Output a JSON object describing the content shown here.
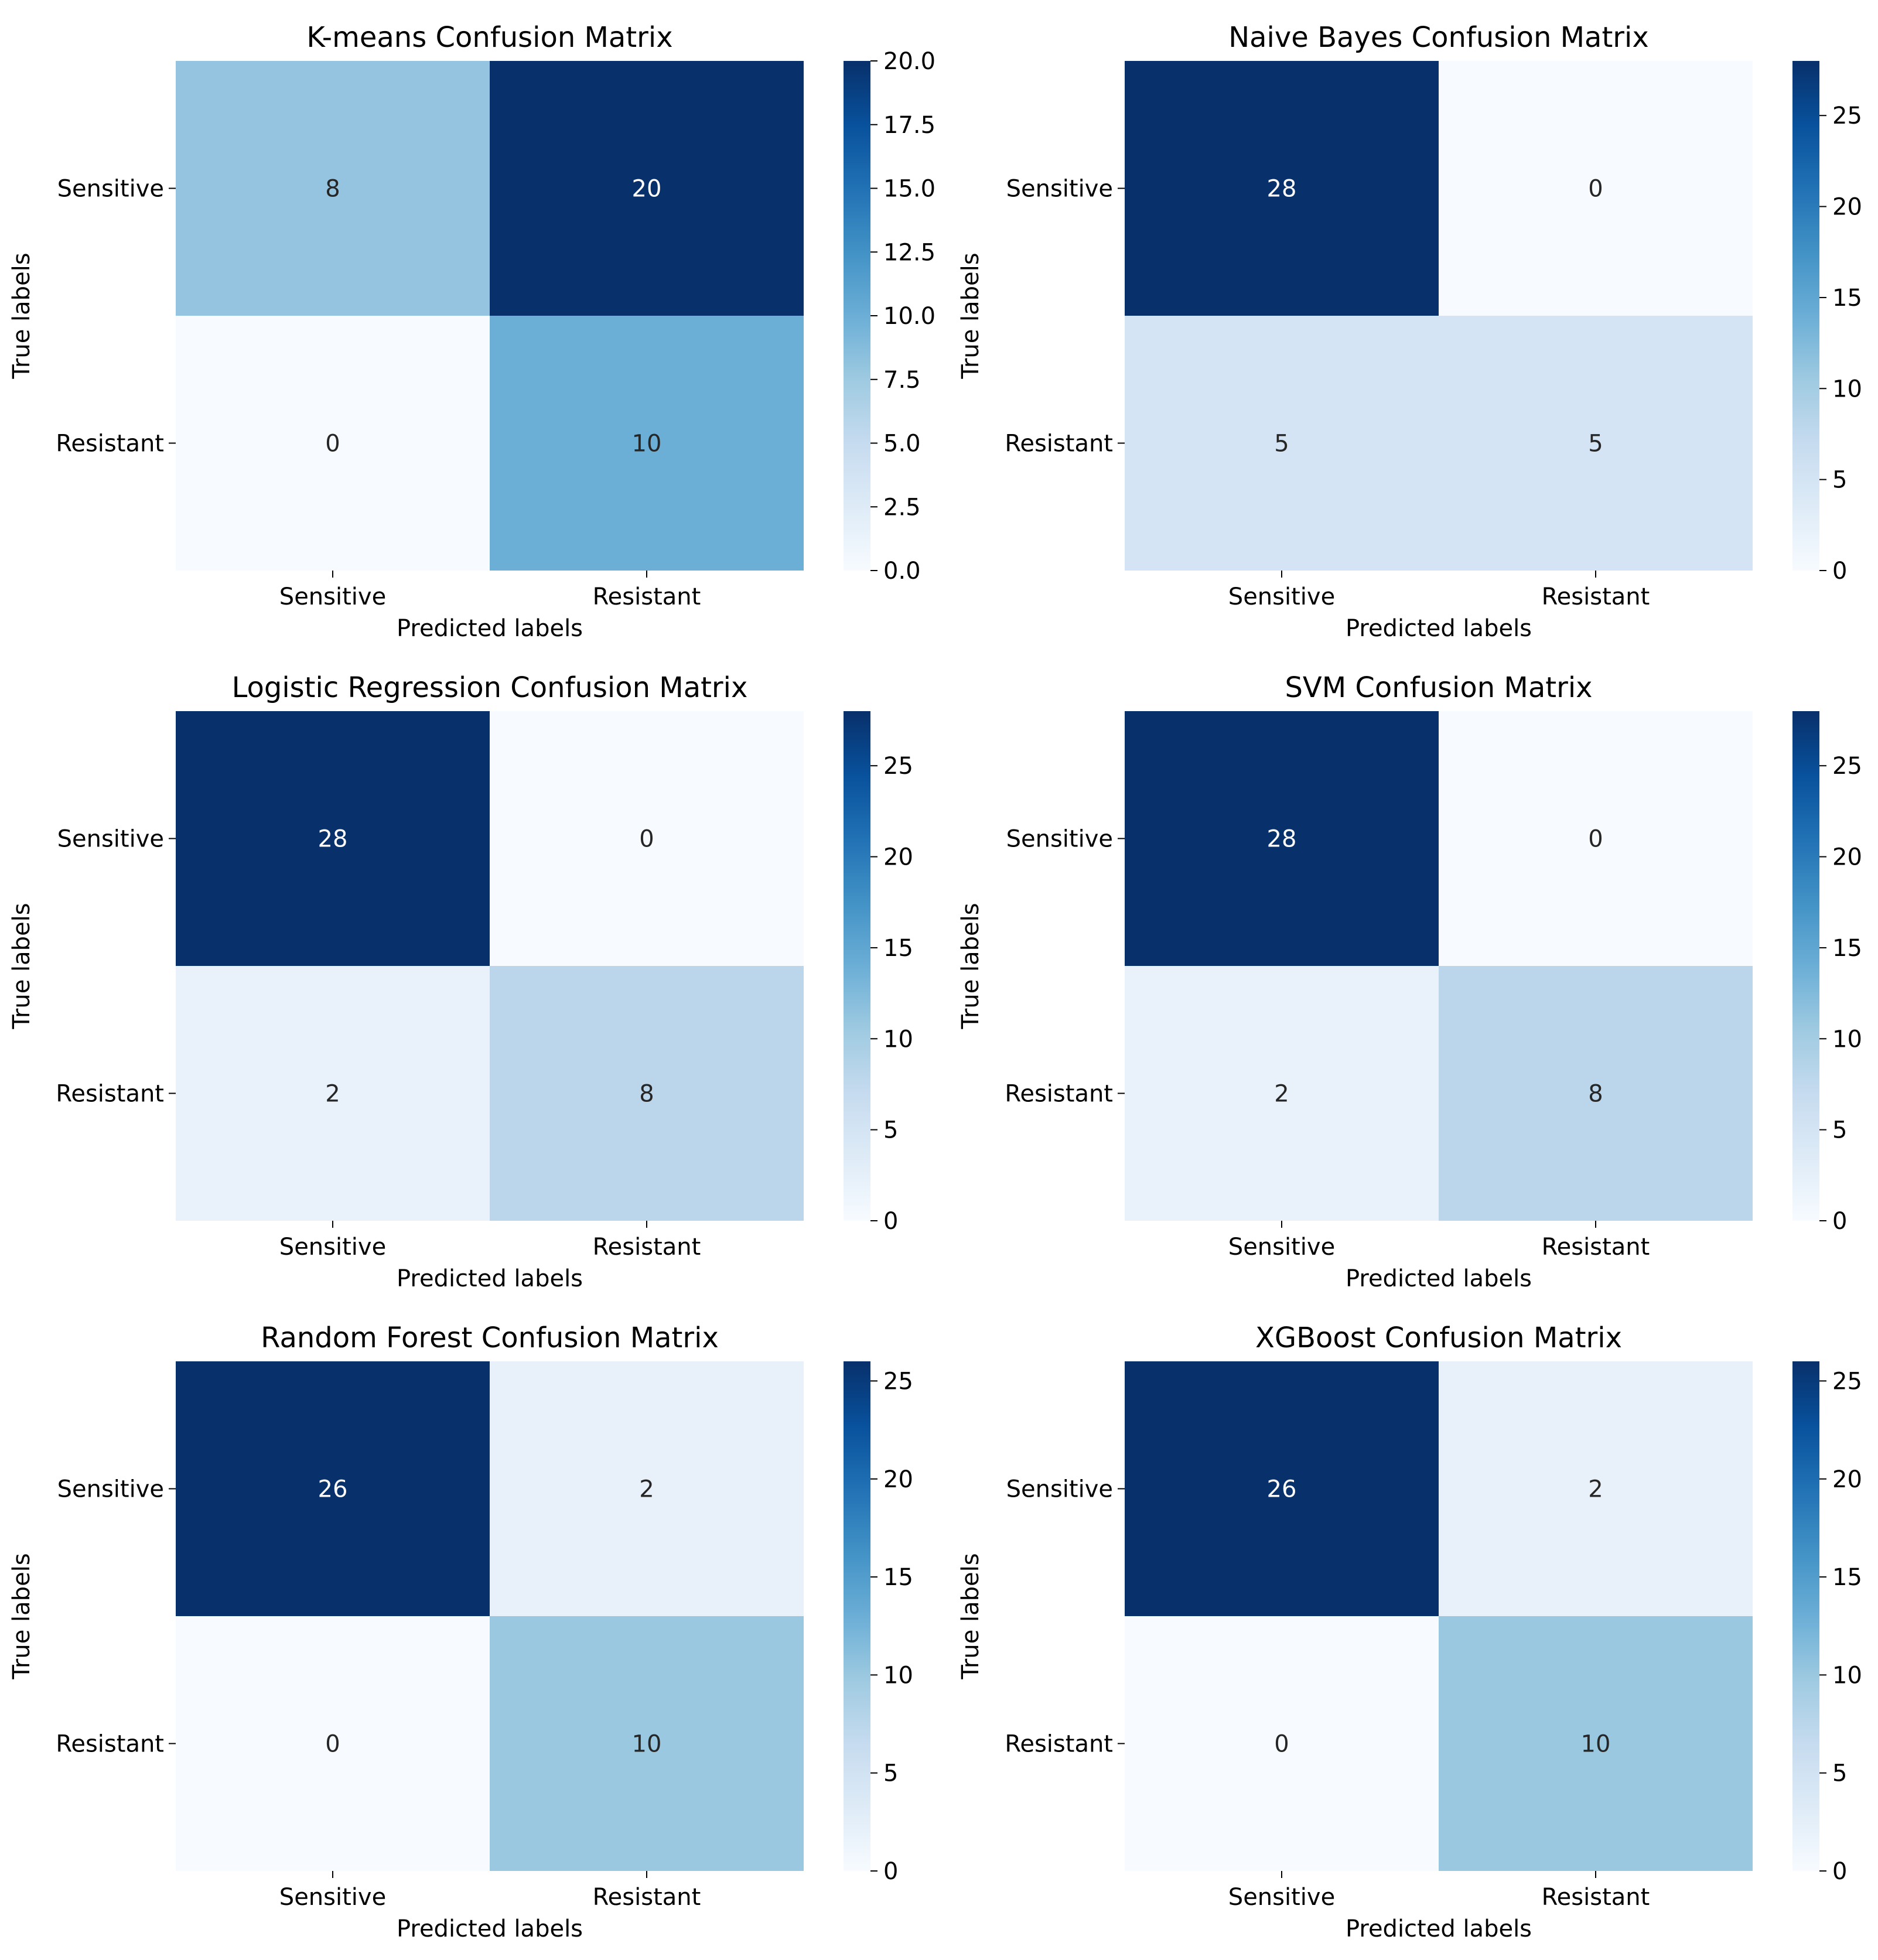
{
  "chart_data": [
    {
      "type": "heatmap",
      "title": "K-means Confusion Matrix",
      "xlabel": "Predicted labels",
      "ylabel": "True labels",
      "x_categories": [
        "Sensitive",
        "Resistant"
      ],
      "y_categories": [
        "Sensitive",
        "Resistant"
      ],
      "values": [
        [
          8,
          20
        ],
        [
          0,
          10
        ]
      ],
      "colorbar": {
        "min": 0,
        "max": 20,
        "ticks": [
          "0.0",
          "2.5",
          "5.0",
          "7.5",
          "10.0",
          "12.5",
          "15.0",
          "17.5",
          "20.0"
        ]
      }
    },
    {
      "type": "heatmap",
      "title": "Naive Bayes Confusion Matrix",
      "xlabel": "Predicted labels",
      "ylabel": "True labels",
      "x_categories": [
        "Sensitive",
        "Resistant"
      ],
      "y_categories": [
        "Sensitive",
        "Resistant"
      ],
      "values": [
        [
          28,
          0
        ],
        [
          5,
          5
        ]
      ],
      "colorbar": {
        "min": 0,
        "max": 28,
        "ticks": [
          "0",
          "5",
          "10",
          "15",
          "20",
          "25"
        ]
      }
    },
    {
      "type": "heatmap",
      "title": "Logistic Regression Confusion Matrix",
      "xlabel": "Predicted labels",
      "ylabel": "True labels",
      "x_categories": [
        "Sensitive",
        "Resistant"
      ],
      "y_categories": [
        "Sensitive",
        "Resistant"
      ],
      "values": [
        [
          28,
          0
        ],
        [
          2,
          8
        ]
      ],
      "colorbar": {
        "min": 0,
        "max": 28,
        "ticks": [
          "0",
          "5",
          "10",
          "15",
          "20",
          "25"
        ]
      }
    },
    {
      "type": "heatmap",
      "title": "SVM Confusion Matrix",
      "xlabel": "Predicted labels",
      "ylabel": "True labels",
      "x_categories": [
        "Sensitive",
        "Resistant"
      ],
      "y_categories": [
        "Sensitive",
        "Resistant"
      ],
      "values": [
        [
          28,
          0
        ],
        [
          2,
          8
        ]
      ],
      "colorbar": {
        "min": 0,
        "max": 28,
        "ticks": [
          "0",
          "5",
          "10",
          "15",
          "20",
          "25"
        ]
      }
    },
    {
      "type": "heatmap",
      "title": "Random Forest Confusion Matrix",
      "xlabel": "Predicted labels",
      "ylabel": "True labels",
      "x_categories": [
        "Sensitive",
        "Resistant"
      ],
      "y_categories": [
        "Sensitive",
        "Resistant"
      ],
      "values": [
        [
          26,
          2
        ],
        [
          0,
          10
        ]
      ],
      "colorbar": {
        "min": 0,
        "max": 26,
        "ticks": [
          "0",
          "5",
          "10",
          "15",
          "20",
          "25"
        ]
      }
    },
    {
      "type": "heatmap",
      "title": "XGBoost Confusion Matrix",
      "xlabel": "Predicted labels",
      "ylabel": "True labels",
      "x_categories": [
        "Sensitive",
        "Resistant"
      ],
      "y_categories": [
        "Sensitive",
        "Resistant"
      ],
      "values": [
        [
          26,
          2
        ],
        [
          0,
          10
        ]
      ],
      "colorbar": {
        "min": 0,
        "max": 26,
        "ticks": [
          "0",
          "5",
          "10",
          "15",
          "20",
          "25"
        ]
      }
    }
  ]
}
